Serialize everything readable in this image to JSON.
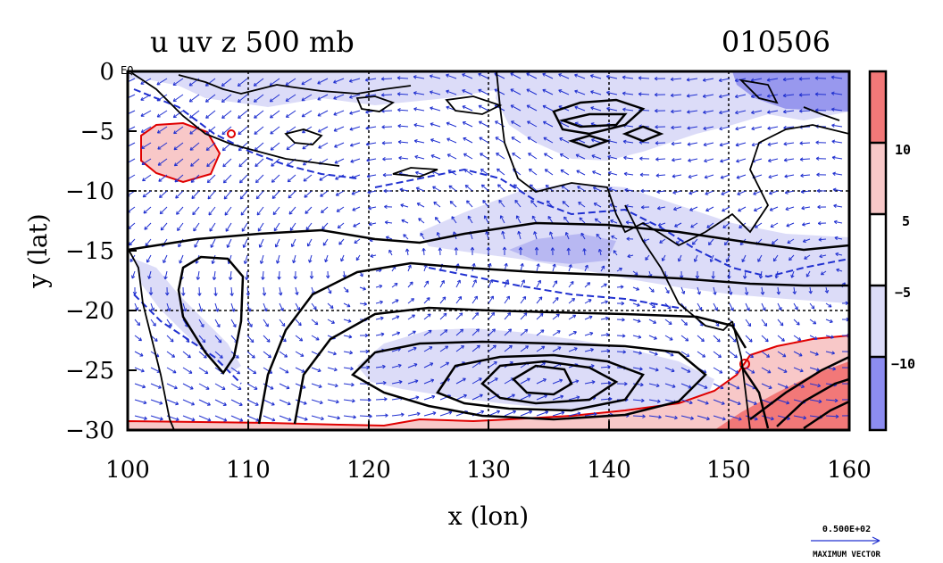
{
  "title_left": "u uv z 500 mb",
  "title_right": "010506",
  "eq_label": "EQ",
  "x_axis": {
    "label": "x (lon)",
    "range": [
      100,
      160
    ],
    "ticks": [
      "100",
      "110",
      "120",
      "130",
      "140",
      "150",
      "160"
    ]
  },
  "y_axis": {
    "label": "y (lat)",
    "range": [
      -30,
      0
    ],
    "ticks": [
      "0",
      "−5",
      "−10",
      "−15",
      "−20",
      "−25",
      "−30"
    ]
  },
  "colorbar": {
    "labels": [
      "10",
      "5",
      "−5",
      "−10"
    ],
    "colors": [
      "#f27878",
      "#f8c8c8",
      "#ffffff",
      "#dcdcf8",
      "#8c8cf0"
    ]
  },
  "vector_key": {
    "value": "0.500E+02",
    "label": "MAXIMUM VECTOR"
  },
  "colors": {
    "positive_contour": "#e00000",
    "geopotential_contour": "#000000",
    "wind_vector": "#2030d0",
    "coast_dashed": "#2030d0"
  }
}
